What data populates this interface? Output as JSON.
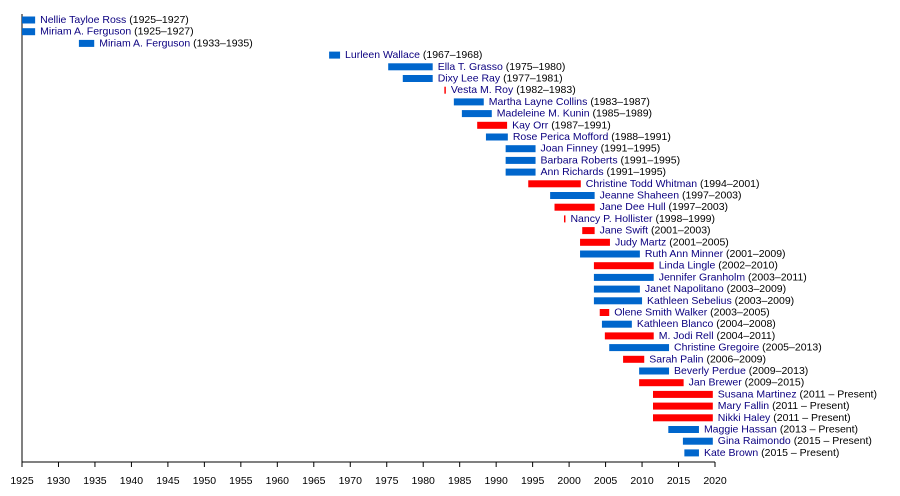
{
  "chart_data": {
    "type": "gantt",
    "xlim": [
      1925,
      2020
    ],
    "xticks": [
      1925,
      1930,
      1935,
      1940,
      1945,
      1950,
      1955,
      1960,
      1965,
      1970,
      1975,
      1980,
      1985,
      1990,
      1995,
      2000,
      2005,
      2010,
      2015,
      2020
    ],
    "rows": [
      {
        "name": "Nellie Tayloe Ross",
        "dates": "(1925–1927)",
        "start": 1925,
        "end": 1926.8,
        "color": "#0066cc"
      },
      {
        "name": "Miriam A. Ferguson",
        "dates": "(1925–1927)",
        "start": 1925,
        "end": 1926.8,
        "color": "#0066cc"
      },
      {
        "name": "Miriam A. Ferguson",
        "dates": "(1933–1935)",
        "start": 1932.8,
        "end": 1934.9,
        "color": "#0066cc"
      },
      {
        "name": "Lurleen Wallace",
        "dates": "(1967–1968)",
        "start": 1967.1,
        "end": 1968.6,
        "color": "#0066cc"
      },
      {
        "name": "Ella T. Grasso",
        "dates": "(1975–1980)",
        "start": 1975.2,
        "end": 1981.3,
        "color": "#0066cc"
      },
      {
        "name": "Dixy Lee Ray",
        "dates": "(1977–1981)",
        "start": 1977.2,
        "end": 1981.3,
        "color": "#0066cc"
      },
      {
        "name": "Vesta M. Roy",
        "dates": "(1982–1983)",
        "start": 1982.9,
        "end": 1983.1,
        "color": "#ff0000"
      },
      {
        "name": "Martha Layne Collins",
        "dates": "(1983–1987)",
        "start": 1984.2,
        "end": 1988.3,
        "color": "#0066cc"
      },
      {
        "name": "Madeleine M. Kunin",
        "dates": "(1985–1989)",
        "start": 1985.3,
        "end": 1989.4,
        "color": "#0066cc"
      },
      {
        "name": "Kay Orr",
        "dates": "(1987–1991)",
        "start": 1987.4,
        "end": 1991.5,
        "color": "#ff0000"
      },
      {
        "name": "Rose Perica Mofford",
        "dates": "(1988–1991)",
        "start": 1988.6,
        "end": 1991.6,
        "color": "#0066cc"
      },
      {
        "name": "Joan Finney",
        "dates": "(1991–1995)",
        "start": 1991.3,
        "end": 1995.4,
        "color": "#0066cc"
      },
      {
        "name": "Barbara Roberts",
        "dates": "(1991–1995)",
        "start": 1991.3,
        "end": 1995.4,
        "color": "#0066cc"
      },
      {
        "name": "Ann Richards",
        "dates": "(1991–1995)",
        "start": 1991.3,
        "end": 1995.4,
        "color": "#0066cc"
      },
      {
        "name": "Christine Todd Whitman",
        "dates": "(1994–2001)",
        "start": 1994.4,
        "end": 2001.6,
        "color": "#ff0000"
      },
      {
        "name": "Jeanne Shaheen",
        "dates": "(1997–2003)",
        "start": 1997.4,
        "end": 2003.5,
        "color": "#0066cc"
      },
      {
        "name": "Jane Dee Hull",
        "dates": "(1997–2003)",
        "start": 1998,
        "end": 2003.5,
        "color": "#ff0000"
      },
      {
        "name": "Nancy P. Hollister",
        "dates": "(1998–1999)",
        "start": 1999.3,
        "end": 1999.5,
        "color": "#ff0000"
      },
      {
        "name": "Jane Swift",
        "dates": "(2001–2003)",
        "start": 2001.8,
        "end": 2003.5,
        "color": "#ff0000"
      },
      {
        "name": "Judy Martz",
        "dates": "(2001–2005)",
        "start": 2001.5,
        "end": 2005.6,
        "color": "#ff0000"
      },
      {
        "name": "Ruth Ann Minner",
        "dates": "(2001–2009)",
        "start": 2001.5,
        "end": 2009.7,
        "color": "#0066cc"
      },
      {
        "name": "Linda Lingle",
        "dates": "(2002–2010)",
        "start": 2003.4,
        "end": 2011.6,
        "color": "#ff0000"
      },
      {
        "name": "Jennifer Granholm",
        "dates": "(2003–2011)",
        "start": 2003.4,
        "end": 2011.6,
        "color": "#0066cc"
      },
      {
        "name": "Janet Napolitano",
        "dates": "(2003–2009)",
        "start": 2003.4,
        "end": 2009.7,
        "color": "#0066cc"
      },
      {
        "name": "Kathleen Sebelius",
        "dates": "(2003–2009)",
        "start": 2003.4,
        "end": 2010,
        "color": "#0066cc"
      },
      {
        "name": "Olene Smith Walker",
        "dates": "(2003–2005)",
        "start": 2004.2,
        "end": 2005.5,
        "color": "#ff0000"
      },
      {
        "name": "Kathleen Blanco",
        "dates": "(2004–2008)",
        "start": 2004.5,
        "end": 2008.6,
        "color": "#0066cc"
      },
      {
        "name": "M. Jodi Rell",
        "dates": "(2004–2011)",
        "start": 2004.9,
        "end": 2011.6,
        "color": "#ff0000"
      },
      {
        "name": "Christine Gregoire",
        "dates": "(2005–2013)",
        "start": 2005.5,
        "end": 2013.7,
        "color": "#0066cc"
      },
      {
        "name": "Sarah Palin",
        "dates": "(2006–2009)",
        "start": 2007.4,
        "end": 2010.3,
        "color": "#ff0000"
      },
      {
        "name": "Beverly Perdue",
        "dates": "(2009–2013)",
        "start": 2009.6,
        "end": 2013.7,
        "color": "#0066cc"
      },
      {
        "name": "Jan Brewer",
        "dates": "(2009–2015)",
        "start": 2009.6,
        "end": 2015.7,
        "color": "#ff0000"
      },
      {
        "name": "Susana Martinez",
        "dates": "(2011 – Present)",
        "start": 2011.5,
        "end": 2019.7,
        "color": "#ff0000"
      },
      {
        "name": "Mary Fallin",
        "dates": "(2011 – Present)",
        "start": 2011.5,
        "end": 2019.7,
        "color": "#ff0000"
      },
      {
        "name": "Nikki Haley",
        "dates": "(2011 – Present)",
        "start": 2011.5,
        "end": 2019.7,
        "color": "#ff0000"
      },
      {
        "name": "Maggie Hassan",
        "dates": "(2013 – Present)",
        "start": 2013.6,
        "end": 2017.8,
        "color": "#0066cc"
      },
      {
        "name": "Gina Raimondo",
        "dates": "(2015 – Present)",
        "start": 2015.6,
        "end": 2019.7,
        "color": "#0066cc"
      },
      {
        "name": "Kate Brown",
        "dates": "(2015 – Present)",
        "start": 2015.8,
        "end": 2017.8,
        "color": "#0066cc"
      }
    ]
  }
}
